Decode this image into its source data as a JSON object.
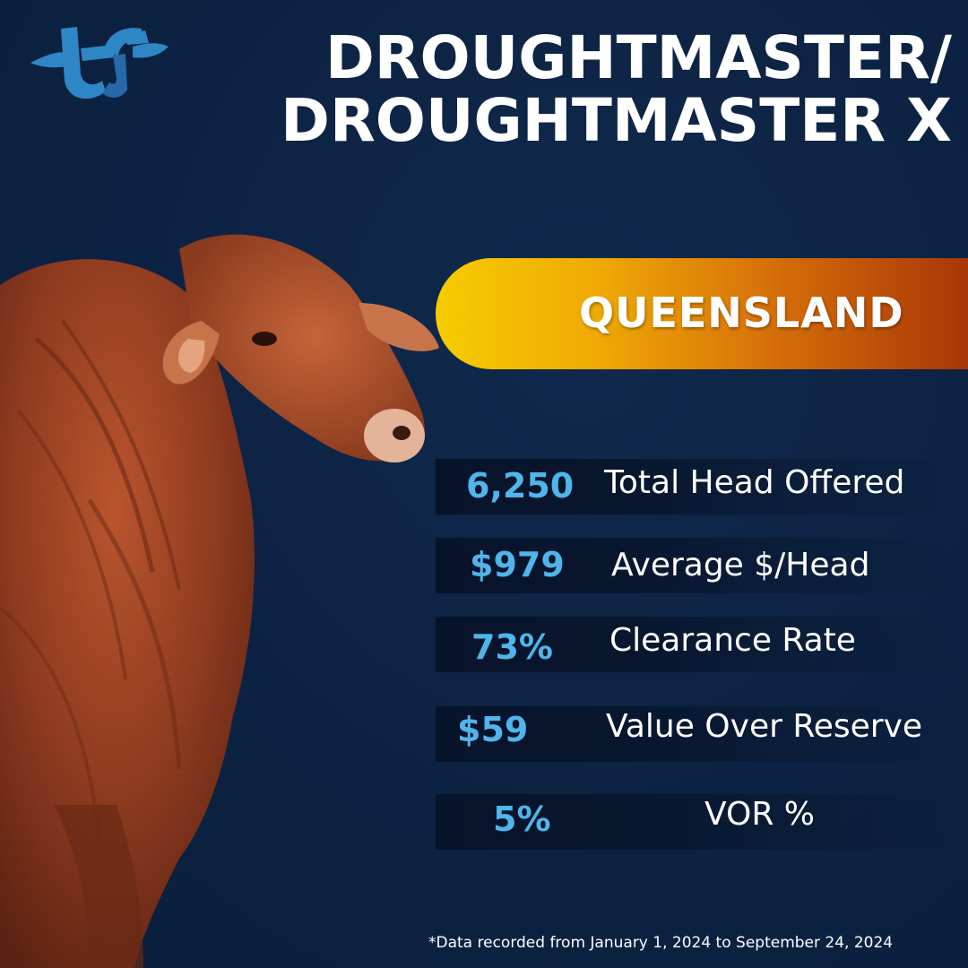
{
  "header": {
    "title_line1": "DROUGHTMASTER/",
    "title_line2": "DROUGHTMASTER X"
  },
  "logo": {
    "icon": "tf-logo-icon",
    "color": "#2f86c6"
  },
  "region": {
    "label": "QUEENSLAND"
  },
  "stats": [
    {
      "value": "6,250",
      "label": "Total Head Offered"
    },
    {
      "value": "$979",
      "label": "Average $/Head"
    },
    {
      "value": "73%",
      "label": "Clearance Rate"
    },
    {
      "value": "$59",
      "label": "Value Over Reserve"
    },
    {
      "value": "5%",
      "label": "VOR %"
    }
  ],
  "footnote": "*Data recorded from January 1, 2024 to September 24, 2024",
  "colors": {
    "background": "#0d2444",
    "accent": "#4fb5ea",
    "region_start": "#f6cc00",
    "region_end": "#a83606"
  }
}
